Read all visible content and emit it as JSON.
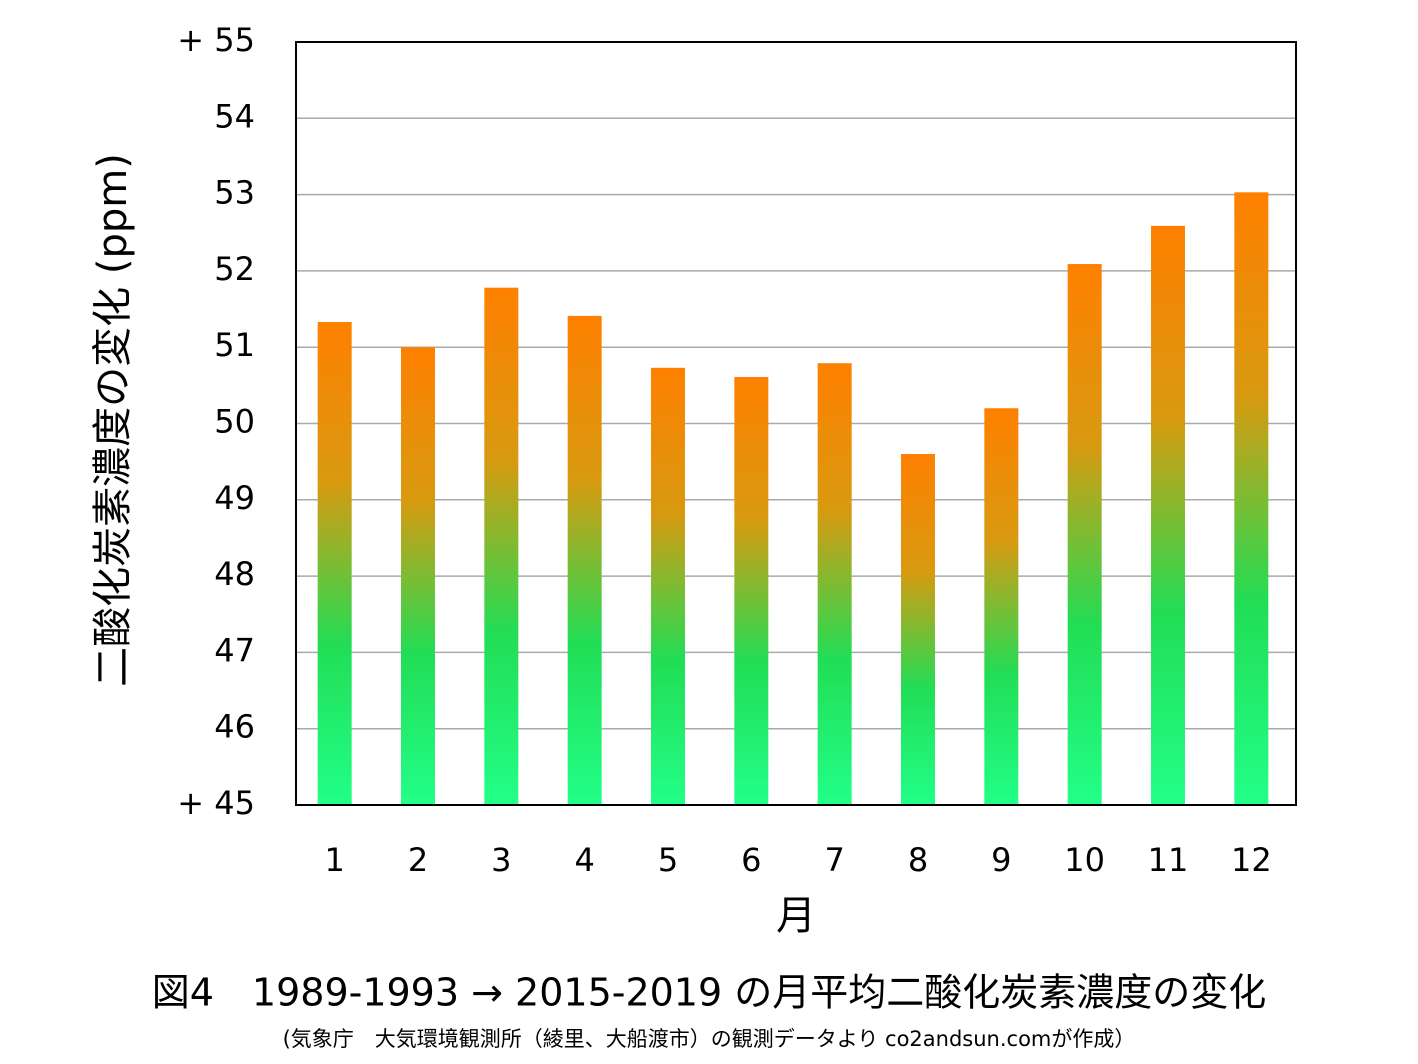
{
  "chart_data": {
    "type": "bar",
    "title": "図4　1989-1993 → 2015-2019 の月平均二酸化炭素濃度の変化",
    "subtitle": "(気象庁　大気環境観測所（綾里、大船渡市）の観測データより co2andsun.comが作成）",
    "x_label": "月",
    "y_label": "二酸化炭素濃度の変化 (ppm)",
    "categories": [
      "1",
      "2",
      "3",
      "4",
      "5",
      "6",
      "7",
      "8",
      "9",
      "10",
      "11",
      "12"
    ],
    "values": [
      51.33,
      51.0,
      51.78,
      51.41,
      50.73,
      50.61,
      50.79,
      49.6,
      50.2,
      52.09,
      52.59,
      53.03
    ],
    "gradient": [
      "#ff8000",
      "#d89a10",
      "#22dd55",
      "#22ff88"
    ],
    "ylim": [
      45,
      55
    ],
    "yticks": [
      {
        "value": 45,
        "label": "+ 45"
      },
      46,
      47,
      48,
      49,
      50,
      51,
      52,
      53,
      54,
      {
        "value": 55,
        "label": "+ 55"
      }
    ],
    "grid": true
  }
}
